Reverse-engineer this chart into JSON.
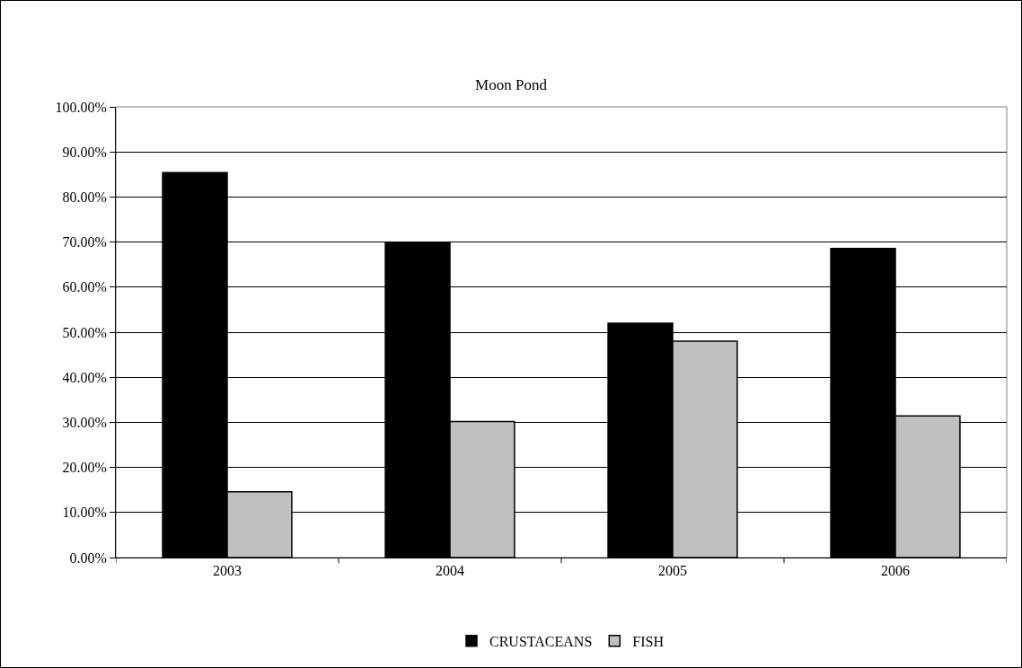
{
  "chart_data": {
    "type": "bar",
    "title": "Moon Pond",
    "categories": [
      "2003",
      "2004",
      "2005",
      "2006"
    ],
    "series": [
      {
        "name": "CRUSTACEANS",
        "color": "#000000",
        "values": [
          85.4,
          69.8,
          52.0,
          68.6
        ]
      },
      {
        "name": "FISH",
        "color": "#c0c0c0",
        "values": [
          14.6,
          30.2,
          48.0,
          31.4
        ]
      }
    ],
    "ylim": [
      0,
      100
    ],
    "yticks": [
      {
        "value": 0,
        "label": "0.00%"
      },
      {
        "value": 10,
        "label": "10.00%"
      },
      {
        "value": 20,
        "label": "20.00%"
      },
      {
        "value": 30,
        "label": "30.00%"
      },
      {
        "value": 40,
        "label": "40.00%"
      },
      {
        "value": 50,
        "label": "50.00%"
      },
      {
        "value": 60,
        "label": "60.00%"
      },
      {
        "value": 70,
        "label": "70.00%"
      },
      {
        "value": 80,
        "label": "80.00%"
      },
      {
        "value": 90,
        "label": "90.00%"
      },
      {
        "value": 100,
        "label": "100.00%"
      }
    ],
    "grid": "y",
    "legend": "bottom"
  }
}
